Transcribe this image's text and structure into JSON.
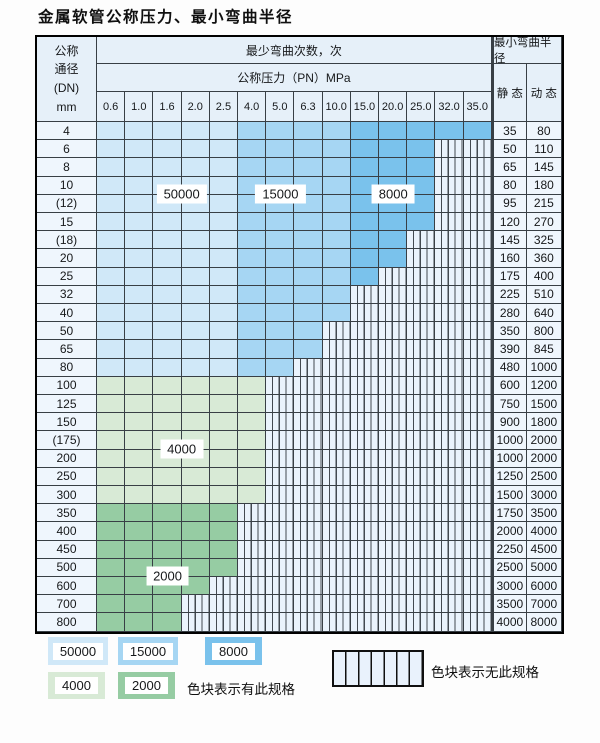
{
  "title": "金属软管公称压力、最小弯曲半径",
  "colors": {
    "blue_50000": "#d0e8f8",
    "blue_15000": "#a6d6f3",
    "blue_8000": "#7ac2ec",
    "green_4000": "#d8ead6",
    "green_2000": "#96cca3",
    "hatch_fill": "#eaf3fc",
    "grid_line": "#383f45"
  },
  "header": {
    "dn_lines": [
      "公称",
      "通径",
      "(DN)",
      "mm"
    ],
    "bend_count": "最少弯曲次数，次",
    "pressure": "公称压力（PN）MPa",
    "min_radius": "最小弯曲半径",
    "static": "静 态",
    "dynamic": "动 态",
    "pressure_values": [
      "0.6",
      "1.0",
      "1.6",
      "2.0",
      "2.5",
      "4.0",
      "5.0",
      "6.3",
      "10.0",
      "15.0",
      "20.0",
      "25.0",
      "32.0",
      "35.0"
    ]
  },
  "rows": [
    {
      "dn": "4",
      "zone": "blue",
      "colored": 14,
      "static": "35",
      "dynamic": "80"
    },
    {
      "dn": "6",
      "zone": "blue",
      "colored": 12,
      "static": "50",
      "dynamic": "110"
    },
    {
      "dn": "8",
      "zone": "blue",
      "colored": 12,
      "static": "65",
      "dynamic": "145"
    },
    {
      "dn": "10",
      "zone": "blue",
      "colored": 12,
      "static": "80",
      "dynamic": "180"
    },
    {
      "dn": "(12)",
      "zone": "blue",
      "colored": 12,
      "static": "95",
      "dynamic": "215"
    },
    {
      "dn": "15",
      "zone": "blue",
      "colored": 12,
      "static": "120",
      "dynamic": "270"
    },
    {
      "dn": "(18)",
      "zone": "blue",
      "colored": 11,
      "static": "145",
      "dynamic": "325"
    },
    {
      "dn": "20",
      "zone": "blue",
      "colored": 11,
      "static": "160",
      "dynamic": "360"
    },
    {
      "dn": "25",
      "zone": "blue",
      "colored": 10,
      "static": "175",
      "dynamic": "400"
    },
    {
      "dn": "32",
      "zone": "blue",
      "colored": 9,
      "static": "225",
      "dynamic": "510"
    },
    {
      "dn": "40",
      "zone": "blue",
      "colored": 9,
      "static": "280",
      "dynamic": "640"
    },
    {
      "dn": "50",
      "zone": "blue",
      "colored": 8,
      "static": "350",
      "dynamic": "800"
    },
    {
      "dn": "65",
      "zone": "blue",
      "colored": 8,
      "static": "390",
      "dynamic": "845"
    },
    {
      "dn": "80",
      "zone": "blue",
      "colored": 7,
      "static": "480",
      "dynamic": "1000"
    },
    {
      "dn": "100",
      "zone": "g4",
      "colored": 6,
      "static": "600",
      "dynamic": "1200"
    },
    {
      "dn": "125",
      "zone": "g4",
      "colored": 6,
      "static": "750",
      "dynamic": "1500"
    },
    {
      "dn": "150",
      "zone": "g4",
      "colored": 6,
      "static": "900",
      "dynamic": "1800"
    },
    {
      "dn": "(175)",
      "zone": "g4",
      "colored": 6,
      "static": "1000",
      "dynamic": "2000"
    },
    {
      "dn": "200",
      "zone": "g4",
      "colored": 6,
      "static": "1000",
      "dynamic": "2000"
    },
    {
      "dn": "250",
      "zone": "g4",
      "colored": 6,
      "static": "1250",
      "dynamic": "2500"
    },
    {
      "dn": "300",
      "zone": "g4",
      "colored": 6,
      "static": "1500",
      "dynamic": "3000"
    },
    {
      "dn": "350",
      "zone": "g2",
      "colored": 5,
      "static": "1750",
      "dynamic": "3500"
    },
    {
      "dn": "400",
      "zone": "g2",
      "colored": 5,
      "static": "2000",
      "dynamic": "4000"
    },
    {
      "dn": "450",
      "zone": "g2",
      "colored": 5,
      "static": "2250",
      "dynamic": "4500"
    },
    {
      "dn": "500",
      "zone": "g2",
      "colored": 5,
      "static": "2500",
      "dynamic": "5000"
    },
    {
      "dn": "600",
      "zone": "g2",
      "colored": 4,
      "static": "3000",
      "dynamic": "6000"
    },
    {
      "dn": "700",
      "zone": "g2",
      "colored": 3,
      "static": "3500",
      "dynamic": "7000"
    },
    {
      "dn": "800",
      "zone": "g2",
      "colored": 3,
      "static": "4000",
      "dynamic": "8000"
    }
  ],
  "blue_shades": {
    "pale_through_col": 4,
    "mid_through_col": 8
  },
  "region_labels": [
    {
      "text": "50000",
      "col_a": 2,
      "col_b": 3,
      "row_line": 4
    },
    {
      "text": "15000",
      "col_a": 5,
      "col_b": 7,
      "row_line": 4
    },
    {
      "text": "8000",
      "col_a": 9,
      "col_b": 11,
      "row_line": 4
    },
    {
      "text": "4000",
      "col_a": 2,
      "col_b": 3,
      "row_line": 18
    },
    {
      "text": "2000",
      "col_a": 1,
      "col_b": 3,
      "row_line": 25
    }
  ],
  "legend": {
    "swatches": [
      {
        "label": "50000",
        "color_key": "blue_50000"
      },
      {
        "label": "15000",
        "color_key": "blue_15000"
      },
      {
        "label": "8000",
        "color_key": "blue_8000"
      },
      {
        "label": "4000",
        "color_key": "green_4000"
      },
      {
        "label": "2000",
        "color_key": "green_2000"
      }
    ],
    "has_spec_note": "色块表示有此规格",
    "no_spec_note": "色块表示无此规格"
  }
}
